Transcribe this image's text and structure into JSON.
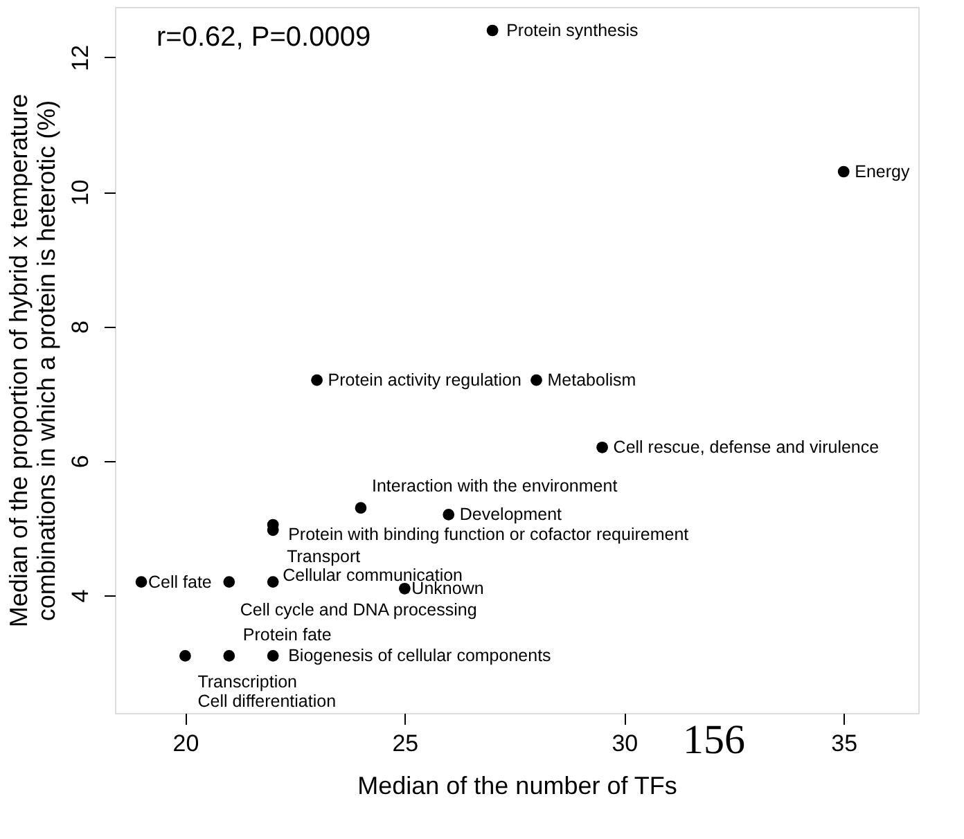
{
  "chart_data": {
    "type": "scatter",
    "xlabel": "Median of the number of TFs",
    "ylabel": "Median of the proportion of hybrid x temperature combinations in which a protein is heterotic (%)",
    "series": [
      {
        "color": "#000000",
        "x": [
          27,
          35,
          23,
          28,
          29.5,
          24,
          26,
          22,
          22,
          19,
          21,
          22,
          25,
          20,
          21,
          22
        ],
        "values": [
          12.4,
          10.3,
          7.2,
          7.2,
          6.2,
          5.3,
          5.2,
          5.05,
          4.97,
          4.2,
          4.2,
          4.2,
          4.1,
          3.1,
          3.1,
          3.1
        ]
      }
    ],
    "xlim": [
      18.4,
      36.7
    ],
    "ylim": [
      2.25,
      12.75
    ],
    "xticks": [
      20,
      25,
      30,
      35
    ],
    "yticks": [
      4,
      6,
      8,
      10,
      12
    ],
    "marker": "circle",
    "grid": false,
    "annotations": [
      "r=0.62, P=0.0009",
      {
        "text": "Protein synthesis",
        "x": 27,
        "y": 12.4
      },
      {
        "text": "Energy",
        "x": 35,
        "y": 10.3
      },
      {
        "text": "Protein activity regulation",
        "x": 23,
        "y": 7.2
      },
      {
        "text": "Metabolism",
        "x": 28,
        "y": 7.2
      },
      {
        "text": "Cell rescue, defense and virulence",
        "x": 29.5,
        "y": 6.2
      },
      {
        "text": "Interaction with the environment",
        "x": 24,
        "y": 5.3
      },
      {
        "text": "Development",
        "x": 26,
        "y": 5.2
      },
      {
        "text": "Protein with binding function or cofactor requirement",
        "x": 22,
        "y": 5.05
      },
      {
        "text": "Transport",
        "x": 22,
        "y": 4.97
      },
      {
        "text": "Cell fate",
        "x": 19,
        "y": 4.2
      },
      {
        "text": "Cell cycle and DNA processing",
        "x": 21,
        "y": 4.2
      },
      {
        "text": "Cellular communication",
        "x": 22,
        "y": 4.2
      },
      {
        "text": "Unknown",
        "x": 25,
        "y": 4.1
      },
      {
        "text": "Transcription",
        "x": 20,
        "y": 3.1
      },
      {
        "text": "Cell differentiation",
        "x": 20,
        "y": 3.1
      },
      {
        "text": "Protein fate",
        "x": 21,
        "y": 3.1
      },
      {
        "text": "Biogenesis of cellular components",
        "x": 22,
        "y": 3.1
      },
      "156"
    ]
  }
}
